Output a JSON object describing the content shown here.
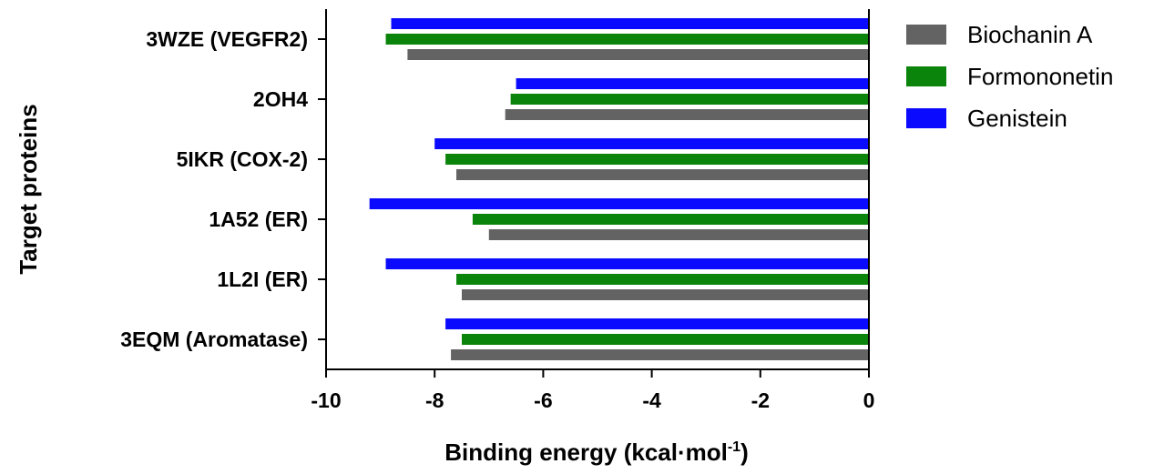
{
  "chart_data": {
    "type": "bar",
    "orientation": "horizontal",
    "categories": [
      "3WZE (VEGFR2)",
      "2OH4",
      "5IKR (COX-2)",
      "1A52 (ER)",
      "1L2I (ER)",
      "3EQM (Aromatase)"
    ],
    "series": [
      {
        "name": "Biochanin A",
        "color": "#636363",
        "values": [
          -8.5,
          -6.7,
          -7.6,
          -7.0,
          -7.5,
          -7.7
        ]
      },
      {
        "name": "Formononetin",
        "color": "#0a840a",
        "values": [
          -8.9,
          -6.6,
          -7.8,
          -7.3,
          -7.6,
          -7.5
        ]
      },
      {
        "name": "Genistein",
        "color": "#0a0aff",
        "values": [
          -8.8,
          -6.5,
          -8.0,
          -9.2,
          -8.9,
          -7.8
        ]
      }
    ],
    "xlim": [
      -10,
      0
    ],
    "x_ticks": [
      "-10",
      "-8",
      "-6",
      "-4",
      "-2",
      "0"
    ],
    "xlabel_main": "Binding energy (kcal·mol",
    "xlabel_sup": "-1",
    "xlabel_tail": ")",
    "ylabel": "Target proteins",
    "legend_position": "top-right",
    "grid": false
  }
}
